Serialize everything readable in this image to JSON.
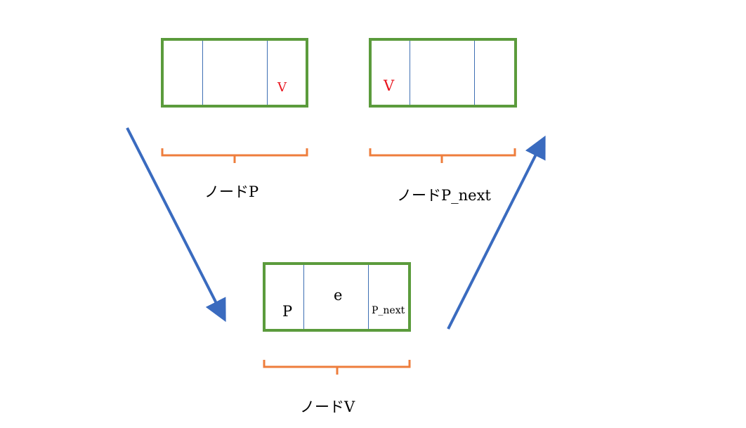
{
  "colors": {
    "box_border": "#5b9b3c",
    "divider": "#3e6fb3",
    "brace": "#ee7d3c",
    "arrow": "#3a6bbf",
    "highlight_text": "#e8141e"
  },
  "nodes": {
    "p": {
      "caption": "ノードP",
      "cells": [
        "",
        "",
        "V"
      ]
    },
    "p_next": {
      "caption": "ノードP_next",
      "cells": [
        "V",
        "",
        ""
      ]
    },
    "v": {
      "caption": "ノードV",
      "cells": [
        "P",
        "e",
        "P_next"
      ]
    }
  },
  "arrows": [
    {
      "from": "node-p",
      "to": "node-v",
      "icon": "arrow-down-right"
    },
    {
      "from": "node-v",
      "to": "node-p-next",
      "icon": "arrow-up-right"
    }
  ]
}
